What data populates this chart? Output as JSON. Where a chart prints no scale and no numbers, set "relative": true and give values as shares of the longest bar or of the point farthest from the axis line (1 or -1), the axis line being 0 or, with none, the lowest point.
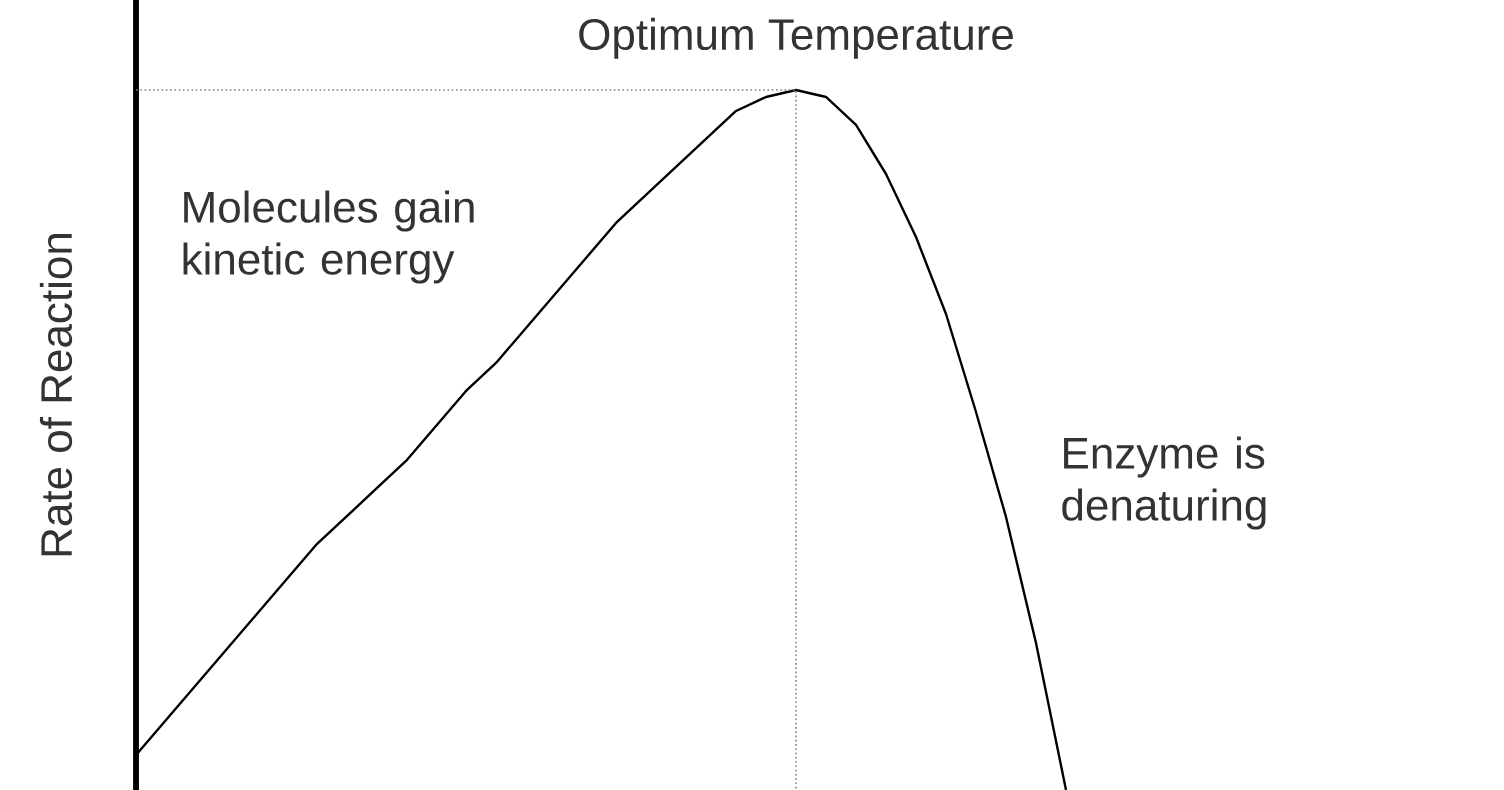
{
  "chart_data": {
    "type": "line",
    "ylabel": "Rate of Reaction",
    "relative": true,
    "categories": [
      null,
      null,
      null,
      null,
      null,
      null,
      null,
      null,
      null,
      null,
      null,
      null,
      null,
      null,
      null,
      null,
      null,
      null,
      null,
      null,
      null,
      null,
      null,
      null,
      null,
      null,
      null,
      null,
      null,
      null,
      null,
      null
    ],
    "series": [
      {
        "color": "#000000",
        "values": [
          0.05,
          0.1,
          0.15,
          0.2,
          0.25,
          0.3,
          0.35,
          0.39,
          0.43,
          0.47,
          0.52,
          0.57,
          0.61,
          0.66,
          0.71,
          0.76,
          0.81,
          0.85,
          0.89,
          0.93,
          0.97,
          0.99,
          1,
          0.99,
          0.95,
          0.88,
          0.79,
          0.68,
          0.54,
          0.39,
          0.21,
          0
        ]
      }
    ],
    "annotations": [
      {
        "text": "Optimum Temperature",
        "y": 1
      },
      "Molecules gain kinetic energy",
      "Enzyme is denaturing"
    ],
    "line_style": "solid",
    "marker": "none"
  }
}
